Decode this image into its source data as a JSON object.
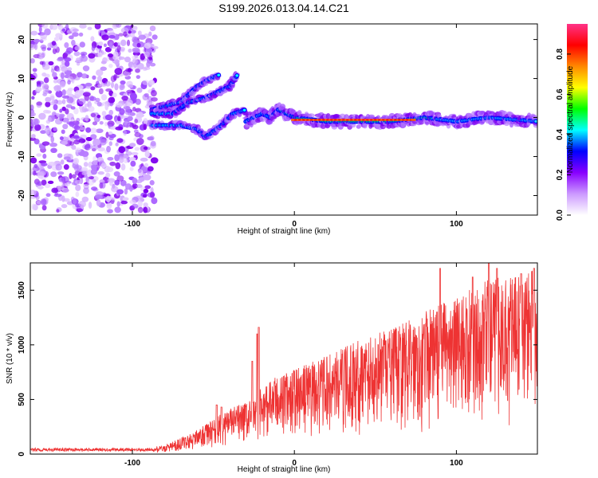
{
  "title": "S199.2026.013.04.14.C21",
  "chart_data": [
    {
      "type": "heatmap",
      "title": "S199.2026.013.04.14.C21",
      "xlabel": "Height of straight line (km)",
      "ylabel": "Frequency (Hz)",
      "xlim": [
        -163,
        150
      ],
      "ylim": [
        -25,
        24
      ],
      "x_ticks": [
        {
          "value": -100,
          "label": "-100"
        },
        {
          "value": 0,
          "label": "0"
        },
        {
          "value": 100,
          "label": "100"
        }
      ],
      "y_ticks": [
        {
          "value": 20,
          "label": "20"
        },
        {
          "value": 10,
          "label": "10"
        },
        {
          "value": 0,
          "label": "0"
        },
        {
          "value": -10,
          "label": "-10"
        },
        {
          "value": -20,
          "label": "-20"
        }
      ],
      "colorbar": {
        "label": "Normalized spectral amplitude",
        "range": [
          0.0,
          0.95
        ],
        "ticks": [
          {
            "value": 0.0,
            "label": "0.0"
          },
          {
            "value": 0.2,
            "label": "0.2"
          },
          {
            "value": 0.4,
            "label": "0.4"
          },
          {
            "value": 0.6,
            "label": "0.6"
          },
          {
            "value": 0.8,
            "label": "0.8"
          }
        ],
        "colors": [
          "#ffffff",
          "#cc99ff",
          "#8800ff",
          "#0000ff",
          "#00ffff",
          "#00ff00",
          "#ffff00",
          "#ff8800",
          "#ff0000",
          "#ff3388"
        ]
      },
      "features": [
        {
          "name": "noise",
          "x_range": [
            -163,
            -86
          ],
          "f_range": [
            -24,
            24
          ],
          "amplitude": 0.15
        },
        {
          "name": "branch-a",
          "points": [
            [
              -88,
              2
            ],
            [
              -70,
              4
            ],
            [
              -60,
              8
            ],
            [
              -52,
              10
            ],
            [
              -46,
              11
            ]
          ],
          "amplitude": 0.35
        },
        {
          "name": "branch-b",
          "points": [
            [
              -88,
              1
            ],
            [
              -75,
              1
            ],
            [
              -65,
              4
            ],
            [
              -55,
              5
            ],
            [
              -40,
              8
            ],
            [
              -35,
              11
            ]
          ],
          "amplitude": 0.3
        },
        {
          "name": "branch-c",
          "points": [
            [
              -88,
              -2
            ],
            [
              -70,
              -2
            ],
            [
              -60,
              -3
            ],
            [
              -55,
              -5
            ]
          ],
          "amplitude": 0.3
        },
        {
          "name": "branch-d",
          "points": [
            [
              -55,
              -5
            ],
            [
              -45,
              -2
            ],
            [
              -38,
              1
            ],
            [
              -30,
              2
            ]
          ],
          "amplitude": 0.3
        },
        {
          "name": "main-line",
          "points": [
            [
              -30,
              -1
            ],
            [
              -25,
              0
            ],
            [
              -20,
              1
            ],
            [
              -15,
              0
            ],
            [
              -10,
              2
            ],
            [
              0,
              0
            ],
            [
              20,
              -1
            ],
            [
              50,
              -1
            ],
            [
              60,
              -1
            ],
            [
              80,
              0
            ],
            [
              100,
              -1
            ],
            [
              120,
              0
            ],
            [
              150,
              -1
            ]
          ],
          "amplitude": 0.9
        }
      ],
      "scatter_color": "#9900ff",
      "line_color": "#ff0000"
    },
    {
      "type": "line",
      "xlabel": "Height of straight line (km)",
      "ylabel": "SNR (10 * v/v)",
      "xlim": [
        -163,
        150
      ],
      "ylim": [
        0,
        1750
      ],
      "x_ticks": [
        {
          "value": -100,
          "label": "-100"
        },
        {
          "value": 0,
          "label": "0"
        },
        {
          "value": 100,
          "label": "100"
        }
      ],
      "y_ticks": [
        {
          "value": 0,
          "label": "0"
        },
        {
          "value": 500,
          "label": "500"
        },
        {
          "value": 1000,
          "label": "1000"
        },
        {
          "value": 1500,
          "label": "1500"
        }
      ],
      "color": "#ee3333",
      "series": [
        {
          "name": "SNR",
          "envelope": [
            [
              -163,
              40
            ],
            [
              -100,
              40
            ],
            [
              -80,
              80
            ],
            [
              -60,
              220
            ],
            [
              -40,
              420
            ],
            [
              -25,
              500
            ],
            [
              -20,
              620
            ],
            [
              -10,
              720
            ],
            [
              0,
              780
            ],
            [
              20,
              900
            ],
            [
              40,
              1050
            ],
            [
              60,
              1150
            ],
            [
              80,
              1300
            ],
            [
              100,
              1450
            ],
            [
              120,
              1600
            ],
            [
              150,
              1700
            ]
          ],
          "spikes": [
            [
              -22,
              1160
            ],
            [
              -23,
              1100
            ],
            [
              -26,
              850
            ],
            [
              -45,
              430
            ],
            [
              -48,
              450
            ],
            [
              90,
              1700
            ],
            [
              110,
              1620
            ],
            [
              120,
              1750
            ],
            [
              125,
              1700
            ],
            [
              140,
              1650
            ],
            [
              148,
              1700
            ]
          ]
        }
      ]
    }
  ]
}
